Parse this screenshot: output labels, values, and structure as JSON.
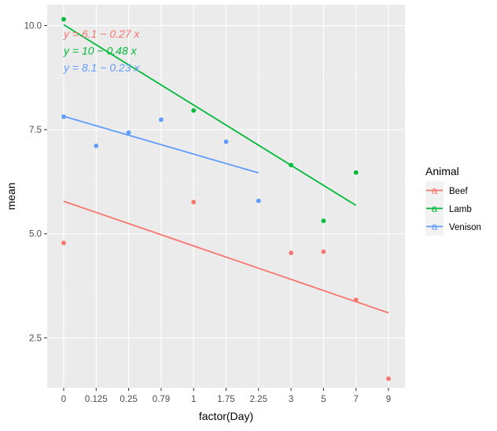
{
  "chart_data": {
    "type": "scatter",
    "title": "",
    "xlabel": "factor(Day)",
    "ylabel": "mean",
    "x_categories": [
      "0",
      "0.125",
      "0.25",
      "0.79",
      "1",
      "1.75",
      "2.25",
      "3",
      "5",
      "7",
      "9"
    ],
    "y_ticks": [
      "2.5",
      "5.0",
      "7.5",
      "10.0"
    ],
    "ylim": [
      1.3,
      10.5
    ],
    "grid": true,
    "legend": {
      "title": "Animal",
      "position": "right",
      "key_glyph": "a"
    },
    "series": [
      {
        "name": "Beef",
        "color": "#F8766D",
        "points": [
          {
            "x": "0",
            "y": 4.78
          },
          {
            "x": "1",
            "y": 5.76
          },
          {
            "x": "3",
            "y": 4.54
          },
          {
            "x": "5",
            "y": 4.57
          },
          {
            "x": "7",
            "y": 3.41
          },
          {
            "x": "9",
            "y": 1.52
          }
        ],
        "fit_line": {
          "from_x": "0",
          "from_y": 5.78,
          "to_x": "9",
          "to_y": 3.1
        },
        "equation": "y = 6.1 − 0.27 x"
      },
      {
        "name": "Lamb",
        "color": "#00BA38",
        "points": [
          {
            "x": "0",
            "y": 10.15
          },
          {
            "x": "1",
            "y": 7.96
          },
          {
            "x": "3",
            "y": 6.65
          },
          {
            "x": "5",
            "y": 5.31
          },
          {
            "x": "7",
            "y": 6.47
          }
        ],
        "fit_line": {
          "from_x": "0",
          "from_y": 10.02,
          "to_x": "7",
          "to_y": 5.68
        },
        "equation": "y = 10 − 0.48 x"
      },
      {
        "name": "Venison",
        "color": "#619CFF",
        "points": [
          {
            "x": "0",
            "y": 7.81
          },
          {
            "x": "0.125",
            "y": 7.11
          },
          {
            "x": "0.25",
            "y": 7.43
          },
          {
            "x": "0.79",
            "y": 7.74
          },
          {
            "x": "1.75",
            "y": 7.21
          },
          {
            "x": "2.25",
            "y": 5.79
          }
        ],
        "fit_line": {
          "from_x": "0",
          "from_y": 7.82,
          "to_x": "2.25",
          "to_y": 6.46
        },
        "equation": "y = 8.1 − 0.23 x"
      }
    ]
  }
}
